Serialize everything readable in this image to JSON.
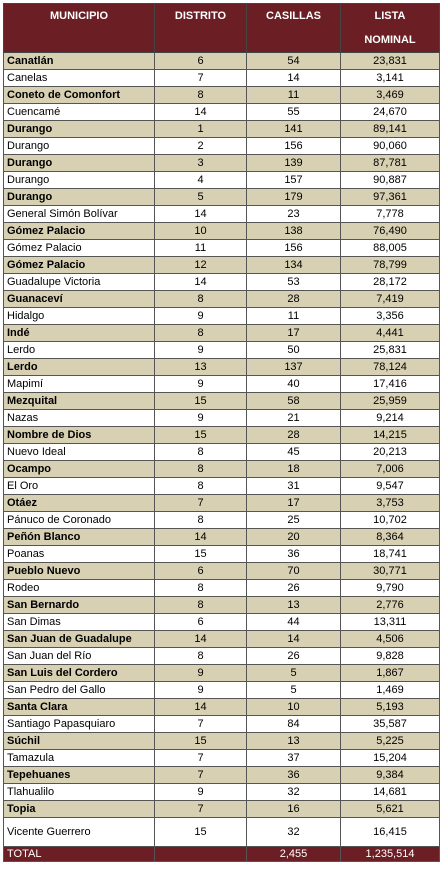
{
  "headers": {
    "municipio": "MUNICIPIO",
    "distrito": "DISTRITO",
    "casillas": "CASILLAS",
    "lista_line1": "LISTA",
    "lista_line2": "NOMINAL"
  },
  "rows": [
    {
      "municipio": "Canatlán",
      "distrito": "6",
      "casillas": "54",
      "lista": "23,831"
    },
    {
      "municipio": "Canelas",
      "distrito": "7",
      "casillas": "14",
      "lista": "3,141"
    },
    {
      "municipio": "Coneto de Comonfort",
      "distrito": "8",
      "casillas": "11",
      "lista": "3,469"
    },
    {
      "municipio": "Cuencamé",
      "distrito": "14",
      "casillas": "55",
      "lista": "24,670"
    },
    {
      "municipio": "Durango",
      "distrito": "1",
      "casillas": "141",
      "lista": "89,141"
    },
    {
      "municipio": "Durango",
      "distrito": "2",
      "casillas": "156",
      "lista": "90,060"
    },
    {
      "municipio": "Durango",
      "distrito": "3",
      "casillas": "139",
      "lista": "87,781"
    },
    {
      "municipio": "Durango",
      "distrito": "4",
      "casillas": "157",
      "lista": "90,887"
    },
    {
      "municipio": "Durango",
      "distrito": "5",
      "casillas": "179",
      "lista": "97,361"
    },
    {
      "municipio": "General Simón Bolívar",
      "distrito": "14",
      "casillas": "23",
      "lista": "7,778"
    },
    {
      "municipio": "Gómez Palacio",
      "distrito": "10",
      "casillas": "138",
      "lista": "76,490"
    },
    {
      "municipio": "Gómez Palacio",
      "distrito": "11",
      "casillas": "156",
      "lista": "88,005"
    },
    {
      "municipio": "Gómez Palacio",
      "distrito": "12",
      "casillas": "134",
      "lista": "78,799"
    },
    {
      "municipio": "Guadalupe Victoria",
      "distrito": "14",
      "casillas": "53",
      "lista": "28,172"
    },
    {
      "municipio": "Guanaceví",
      "distrito": "8",
      "casillas": "28",
      "lista": "7,419"
    },
    {
      "municipio": "Hidalgo",
      "distrito": "9",
      "casillas": "11",
      "lista": "3,356"
    },
    {
      "municipio": "Indé",
      "distrito": "8",
      "casillas": "17",
      "lista": "4,441"
    },
    {
      "municipio": "Lerdo",
      "distrito": "9",
      "casillas": "50",
      "lista": "25,831"
    },
    {
      "municipio": "Lerdo",
      "distrito": "13",
      "casillas": "137",
      "lista": "78,124"
    },
    {
      "municipio": "Mapimí",
      "distrito": "9",
      "casillas": "40",
      "lista": "17,416"
    },
    {
      "municipio": "Mezquital",
      "distrito": "15",
      "casillas": "58",
      "lista": "25,959"
    },
    {
      "municipio": "Nazas",
      "distrito": "9",
      "casillas": "21",
      "lista": "9,214"
    },
    {
      "municipio": "Nombre de Dios",
      "distrito": "15",
      "casillas": "28",
      "lista": "14,215"
    },
    {
      "municipio": "Nuevo Ideal",
      "distrito": "8",
      "casillas": "45",
      "lista": "20,213"
    },
    {
      "municipio": "Ocampo",
      "distrito": "8",
      "casillas": "18",
      "lista": "7,006"
    },
    {
      "municipio": "El Oro",
      "distrito": "8",
      "casillas": "31",
      "lista": "9,547"
    },
    {
      "municipio": "Otáez",
      "distrito": "7",
      "casillas": "17",
      "lista": "3,753"
    },
    {
      "municipio": "Pánuco de Coronado",
      "distrito": "8",
      "casillas": "25",
      "lista": "10,702"
    },
    {
      "municipio": "Peñón Blanco",
      "distrito": "14",
      "casillas": "20",
      "lista": "8,364"
    },
    {
      "municipio": "Poanas",
      "distrito": "15",
      "casillas": "36",
      "lista": "18,741"
    },
    {
      "municipio": "Pueblo Nuevo",
      "distrito": "6",
      "casillas": "70",
      "lista": "30,771"
    },
    {
      "municipio": "Rodeo",
      "distrito": "8",
      "casillas": "26",
      "lista": "9,790"
    },
    {
      "municipio": "San Bernardo",
      "distrito": "8",
      "casillas": "13",
      "lista": "2,776"
    },
    {
      "municipio": "San Dimas",
      "distrito": "6",
      "casillas": "44",
      "lista": "13,311"
    },
    {
      "municipio": "San Juan de Guadalupe",
      "distrito": "14",
      "casillas": "14",
      "lista": "4,506"
    },
    {
      "municipio": "San Juan del Río",
      "distrito": "8",
      "casillas": "26",
      "lista": "9,828"
    },
    {
      "municipio": "San Luis del Cordero",
      "distrito": "9",
      "casillas": "5",
      "lista": "1,867"
    },
    {
      "municipio": "San Pedro del Gallo",
      "distrito": "9",
      "casillas": "5",
      "lista": "1,469"
    },
    {
      "municipio": "Santa Clara",
      "distrito": "14",
      "casillas": "10",
      "lista": "5,193"
    },
    {
      "municipio": "Santiago Papasquiaro",
      "distrito": "7",
      "casillas": "84",
      "lista": "35,587"
    },
    {
      "municipio": "Súchil",
      "distrito": "15",
      "casillas": "13",
      "lista": "5,225"
    },
    {
      "municipio": "Tamazula",
      "distrito": "7",
      "casillas": "37",
      "lista": "15,204"
    },
    {
      "municipio": "Tepehuanes",
      "distrito": "7",
      "casillas": "36",
      "lista": "9,384"
    },
    {
      "municipio": "Tlahualilo",
      "distrito": "9",
      "casillas": "32",
      "lista": "14,681"
    },
    {
      "municipio": "Topia",
      "distrito": "7",
      "casillas": "16",
      "lista": "5,621"
    },
    {
      "municipio": "Vicente Guerrero",
      "distrito": "15",
      "casillas": "32",
      "lista": "16,415"
    }
  ],
  "total": {
    "label": "TOTAL",
    "distrito": "",
    "casillas": "2,455",
    "lista": "1,235,514"
  },
  "colors": {
    "header_bg": "#6b1e23",
    "stripe_bg": "#d7d0b2",
    "plain_bg": "#ffffff"
  }
}
